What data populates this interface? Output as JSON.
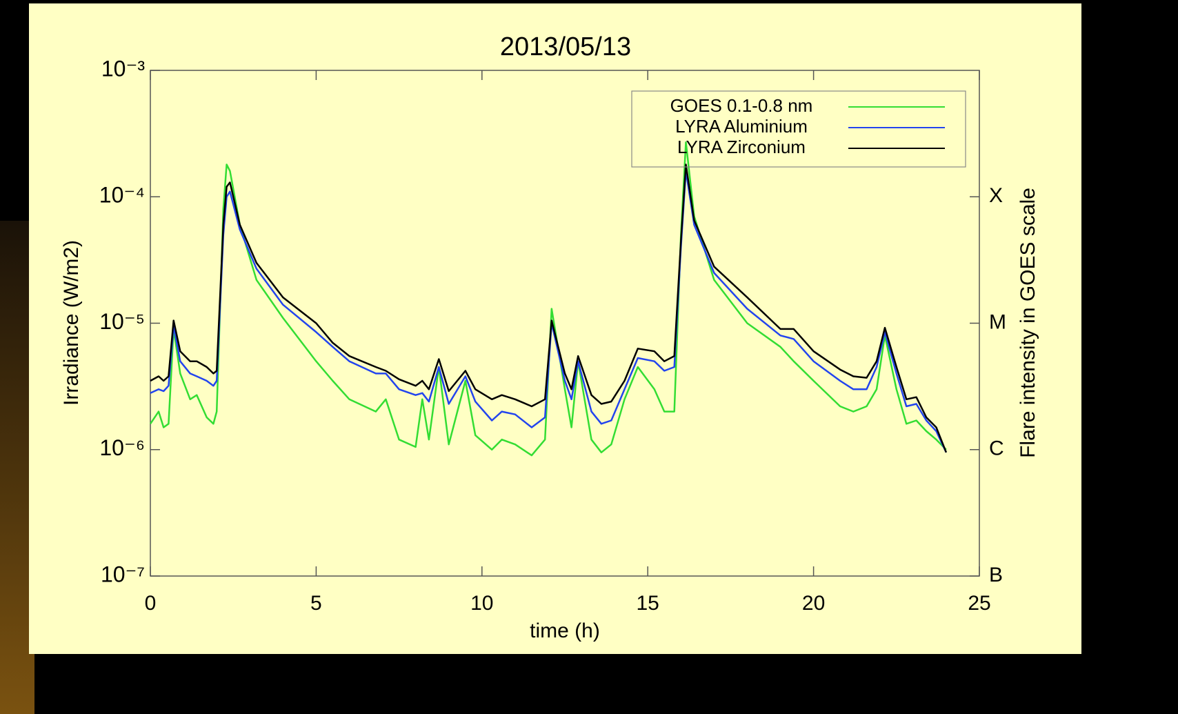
{
  "chart_data": {
    "type": "line",
    "title": "2013/05/13",
    "xlabel": "time (h)",
    "ylabel": "Irradiance (W/m2)",
    "y2label": "Flare intensity in GOES scale",
    "yscale": "log",
    "legend": "upper right",
    "xlim": [
      0,
      25
    ],
    "xticks": [
      0,
      5,
      10,
      15,
      20,
      25
    ],
    "ylim": [
      1e-07,
      0.001
    ],
    "yticks": [
      {
        "value": 1e-07,
        "label": "10⁻⁷"
      },
      {
        "value": 1e-06,
        "label": "10⁻⁶"
      },
      {
        "value": 1e-05,
        "label": "10⁻⁵"
      },
      {
        "value": 0.0001,
        "label": "10⁻⁴"
      },
      {
        "value": 0.001,
        "label": "10⁻³"
      }
    ],
    "y2lim": [
      1e-07,
      0.001
    ],
    "y2ticks": [
      {
        "value": 1e-07,
        "label": "B"
      },
      {
        "value": 1e-06,
        "label": "C"
      },
      {
        "value": 1e-05,
        "label": "M"
      },
      {
        "value": 0.0001,
        "label": "X"
      }
    ],
    "x": [
      0,
      0.25,
      0.4,
      0.55,
      0.7,
      0.9,
      1.2,
      1.4,
      1.7,
      1.9,
      2.0,
      2.2,
      2.3,
      2.4,
      2.7,
      3.2,
      4.0,
      5.0,
      5.5,
      6.0,
      6.8,
      7.1,
      7.5,
      8.0,
      8.2,
      8.4,
      8.7,
      9.0,
      9.5,
      9.8,
      10.3,
      10.6,
      11.0,
      11.5,
      11.9,
      12.1,
      12.5,
      12.7,
      12.9,
      13.3,
      13.6,
      13.9,
      14.3,
      14.7,
      15.2,
      15.5,
      15.8,
      16.0,
      16.15,
      16.4,
      17.0,
      18.0,
      19.0,
      19.4,
      20.0,
      20.8,
      21.2,
      21.6,
      21.9,
      22.15,
      22.5,
      22.8,
      23.1,
      23.4,
      23.7,
      24.0
    ],
    "series": [
      {
        "name": "GOES 0.1-0.8 nm",
        "color": "#33dd33",
        "values": [
          1.6e-06,
          2e-06,
          1.5e-06,
          1.6e-06,
          9e-06,
          4e-06,
          2.5e-06,
          2.7e-06,
          1.8e-06,
          1.6e-06,
          2e-06,
          8e-05,
          0.00018,
          0.00016,
          6e-05,
          2.2e-05,
          1.1e-05,
          5e-06,
          3.5e-06,
          2.5e-06,
          2e-06,
          2.5e-06,
          1.2e-06,
          1.05e-06,
          2.5e-06,
          1.2e-06,
          4.5e-06,
          1.1e-06,
          3.5e-06,
          1.3e-06,
          1e-06,
          1.2e-06,
          1.1e-06,
          9e-07,
          1.2e-06,
          1.3e-05,
          3e-06,
          1.5e-06,
          5e-06,
          1.2e-06,
          9.5e-07,
          1.1e-06,
          2.5e-06,
          4.5e-06,
          3e-06,
          2e-06,
          2e-06,
          5e-05,
          0.00027,
          7e-05,
          2.2e-05,
          1e-05,
          6.5e-06,
          5e-06,
          3.5e-06,
          2.2e-06,
          2e-06,
          2.2e-06,
          3e-06,
          8e-06,
          3e-06,
          1.6e-06,
          1.7e-06,
          1.4e-06,
          1.2e-06,
          1e-06
        ]
      },
      {
        "name": "LYRA Aluminium",
        "color": "#2244ee",
        "values": [
          2.8e-06,
          3e-06,
          2.9e-06,
          3.2e-06,
          9.5e-06,
          5e-06,
          4e-06,
          3.8e-06,
          3.5e-06,
          3.2e-06,
          3.5e-06,
          5e-05,
          0.0001,
          0.00011,
          5.5e-05,
          2.7e-05,
          1.4e-05,
          8.5e-06,
          6.5e-06,
          5e-06,
          4e-06,
          4e-06,
          3e-06,
          2.7e-06,
          2.8e-06,
          2.4e-06,
          4.5e-06,
          2.3e-06,
          3.8e-06,
          2.4e-06,
          1.7e-06,
          2e-06,
          1.9e-06,
          1.5e-06,
          1.8e-06,
          1e-05,
          3.5e-06,
          2.5e-06,
          5e-06,
          2e-06,
          1.6e-06,
          1.7e-06,
          3e-06,
          5.3e-06,
          5e-06,
          4.2e-06,
          4.5e-06,
          4e-05,
          0.00016,
          6e-05,
          2.5e-05,
          1.3e-05,
          8e-06,
          7.5e-06,
          5e-06,
          3.5e-06,
          3e-06,
          3e-06,
          4.5e-06,
          8.5e-06,
          4e-06,
          2.2e-06,
          2.3e-06,
          1.7e-06,
          1.4e-06,
          9.5e-07
        ]
      },
      {
        "name": "LYRA Zirconium",
        "color": "#000000",
        "values": [
          3.5e-06,
          3.8e-06,
          3.5e-06,
          3.8e-06,
          1.05e-05,
          6e-06,
          5e-06,
          5e-06,
          4.5e-06,
          4e-06,
          4.2e-06,
          6e-05,
          0.00012,
          0.00013,
          6e-05,
          3e-05,
          1.6e-05,
          1e-05,
          7e-06,
          5.5e-06,
          4.5e-06,
          4.2e-06,
          3.6e-06,
          3.2e-06,
          3.5e-06,
          3e-06,
          5.2e-06,
          2.9e-06,
          4.2e-06,
          3e-06,
          2.5e-06,
          2.7e-06,
          2.5e-06,
          2.2e-06,
          2.5e-06,
          1.05e-05,
          4e-06,
          3e-06,
          5.5e-06,
          2.7e-06,
          2.3e-06,
          2.4e-06,
          3.5e-06,
          6.3e-06,
          6e-06,
          5e-06,
          5.5e-06,
          4.5e-05,
          0.00018,
          6.5e-05,
          2.8e-05,
          1.6e-05,
          9e-06,
          9e-06,
          6e-06,
          4.3e-06,
          3.8e-06,
          3.7e-06,
          5e-06,
          9.2e-06,
          4.5e-06,
          2.5e-06,
          2.6e-06,
          1.8e-06,
          1.5e-06,
          9.5e-07
        ]
      }
    ]
  }
}
